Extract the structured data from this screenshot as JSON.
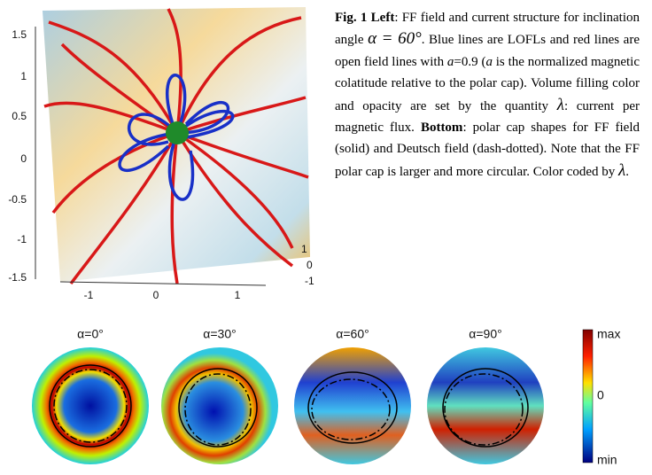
{
  "figure": {
    "left_plot": {
      "y_ticks": [
        "1.5",
        "1",
        "0.5",
        "0",
        "-0.5",
        "-1",
        "-1.5"
      ],
      "x_ticks": [
        "-1",
        "0",
        "1"
      ],
      "z_ticks": [
        "1",
        "0",
        "-1"
      ]
    },
    "caption": {
      "runs": [
        {
          "text": "Fig. 1 Left",
          "style": "bold"
        },
        {
          "text": ": FF field and current structure for inclination angle ",
          "style": "normal"
        },
        {
          "text": "α = 60°",
          "style": "math"
        },
        {
          "text": ". Blue lines are LOFLs and red lines are open field lines with ",
          "style": "normal"
        },
        {
          "text": "a",
          "style": "italic"
        },
        {
          "text": "=0.9 (",
          "style": "normal"
        },
        {
          "text": "a",
          "style": "italic"
        },
        {
          "text": " is the normalized magnetic colatitude relative to the polar cap). Volume filling color and opacity are set by the quantity ",
          "style": "normal"
        },
        {
          "text": "λ",
          "style": "math"
        },
        {
          "text": ": current per magnetic flux. ",
          "style": "normal"
        },
        {
          "text": "Bottom",
          "style": "bold"
        },
        {
          "text": ": polar cap shapes for FF field (solid) and Deutsch field (dash-dotted). Note that the FF polar cap is larger and more circular. Color coded by ",
          "style": "normal"
        },
        {
          "text": "λ",
          "style": "math"
        },
        {
          "text": ".",
          "style": "normal"
        }
      ]
    },
    "panels": [
      {
        "label": "α=0°"
      },
      {
        "label": "α=30°"
      },
      {
        "label": "α=60°"
      },
      {
        "label": "α=90°"
      }
    ],
    "colorbar": {
      "labels": [
        "max",
        "0",
        "min"
      ]
    }
  }
}
